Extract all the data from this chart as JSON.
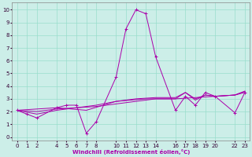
{
  "xlabel": "Windchill (Refroidissement éolien,°C)",
  "background_color": "#cceee8",
  "grid_color": "#99ddcc",
  "line_color": "#aa00aa",
  "xlim": [
    -0.5,
    23.5
  ],
  "ylim": [
    -0.3,
    10.6
  ],
  "xticks": [
    0,
    1,
    2,
    4,
    5,
    6,
    7,
    8,
    10,
    11,
    12,
    13,
    14,
    16,
    17,
    18,
    19,
    20,
    22,
    23
  ],
  "yticks": [
    0,
    1,
    2,
    3,
    4,
    5,
    6,
    7,
    8,
    9,
    10
  ],
  "series_main": [
    [
      0,
      2.1
    ],
    [
      1,
      1.8
    ],
    [
      2,
      1.5
    ],
    [
      4,
      2.3
    ],
    [
      5,
      2.5
    ],
    [
      6,
      2.5
    ],
    [
      7,
      0.3
    ],
    [
      8,
      1.2
    ],
    [
      10,
      4.7
    ],
    [
      11,
      8.5
    ],
    [
      12,
      10.0
    ],
    [
      13,
      9.7
    ],
    [
      14,
      6.3
    ],
    [
      16,
      2.1
    ],
    [
      17,
      3.2
    ],
    [
      18,
      2.5
    ],
    [
      19,
      3.5
    ],
    [
      20,
      3.2
    ],
    [
      22,
      1.9
    ],
    [
      23,
      3.5
    ]
  ],
  "series_smooth1": [
    [
      0,
      2.1
    ],
    [
      2,
      1.8
    ],
    [
      4,
      2.1
    ],
    [
      6,
      2.3
    ],
    [
      8,
      2.4
    ],
    [
      10,
      2.6
    ],
    [
      12,
      2.8
    ],
    [
      14,
      3.0
    ],
    [
      16,
      3.0
    ],
    [
      18,
      3.1
    ],
    [
      20,
      3.2
    ],
    [
      22,
      3.3
    ],
    [
      23,
      3.5
    ]
  ],
  "series_smooth2": [
    [
      0,
      2.1
    ],
    [
      2,
      2.0
    ],
    [
      4,
      2.2
    ],
    [
      6,
      2.3
    ],
    [
      8,
      2.5
    ],
    [
      10,
      2.8
    ],
    [
      12,
      3.0
    ],
    [
      14,
      3.1
    ],
    [
      16,
      3.1
    ],
    [
      17,
      3.5
    ],
    [
      18,
      3.0
    ],
    [
      19,
      3.3
    ],
    [
      20,
      3.2
    ],
    [
      22,
      3.3
    ],
    [
      23,
      3.6
    ]
  ],
  "series_smooth3": [
    [
      0,
      2.1
    ],
    [
      4,
      2.3
    ],
    [
      7,
      2.1
    ],
    [
      10,
      2.8
    ],
    [
      13,
      3.0
    ],
    [
      16,
      3.0
    ],
    [
      17,
      3.5
    ],
    [
      18,
      2.9
    ],
    [
      19,
      3.3
    ],
    [
      20,
      3.2
    ],
    [
      22,
      3.3
    ],
    [
      23,
      3.6
    ]
  ]
}
